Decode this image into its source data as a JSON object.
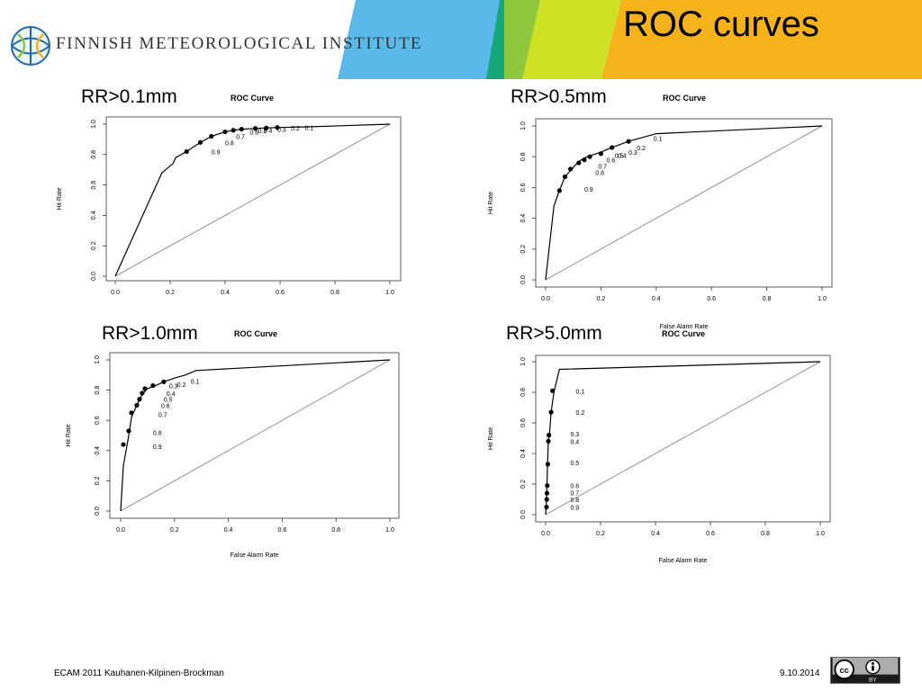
{
  "header": {
    "org_name": "FINNISH METEOROLOGICAL INSTITUTE",
    "title": "ROC curves"
  },
  "colors": {
    "banner_blue": "#5bb9e9",
    "banner_teal": "#17a87a",
    "banner_green": "#8ec73e",
    "banner_lime": "#cfe022",
    "banner_yellow": "#f6b21a",
    "curve": "#000000",
    "diagonal": "#7a7a7a"
  },
  "footer": {
    "left": "ECAM 2011 Kauhanen-Kilpinen-Brockman",
    "date": "9.10.2014",
    "license_badge": "BY"
  },
  "chart_data": [
    {
      "type": "line",
      "panel_label": "RR>0.1mm",
      "title": "ROC Curve",
      "xlabel": "",
      "ylabel": "Hit Rate",
      "xlim": [
        0,
        1
      ],
      "ylim": [
        0,
        1
      ],
      "ticks": [
        "0.0",
        "0.2",
        "0.4",
        "0.6",
        "0.8",
        "1.0"
      ],
      "grid": false,
      "series": [
        {
          "x": [
            0.0,
            0.17,
            0.21,
            0.22,
            0.26,
            0.31,
            0.35,
            0.4,
            0.43,
            0.46,
            0.51,
            0.55,
            0.59,
            0.7,
            1.0
          ],
          "y": [
            0.0,
            0.68,
            0.74,
            0.78,
            0.82,
            0.88,
            0.92,
            0.95,
            0.96,
            0.967,
            0.972,
            0.975,
            0.978,
            0.982,
            1.0
          ]
        }
      ],
      "points": {
        "x": [
          0.26,
          0.31,
          0.35,
          0.4,
          0.43,
          0.46,
          0.51,
          0.55,
          0.59
        ],
        "y": [
          0.82,
          0.88,
          0.92,
          0.95,
          0.96,
          0.967,
          0.972,
          0.975,
          0.978
        ]
      },
      "annotations": [
        {
          "text": "0.9",
          "x": 0.35,
          "y": 0.82
        },
        {
          "text": "0.8",
          "x": 0.4,
          "y": 0.88
        },
        {
          "text": "0.7",
          "x": 0.44,
          "y": 0.92
        },
        {
          "text": "0.6",
          "x": 0.49,
          "y": 0.95
        },
        {
          "text": "0.5",
          "x": 0.52,
          "y": 0.96
        },
        {
          "text": "0.4",
          "x": 0.54,
          "y": 0.963
        },
        {
          "text": "0.3",
          "x": 0.59,
          "y": 0.966
        },
        {
          "text": "0.2",
          "x": 0.64,
          "y": 0.975
        },
        {
          "text": "0.1",
          "x": 0.69,
          "y": 0.978
        }
      ]
    },
    {
      "type": "line",
      "panel_label": "RR>0.5mm",
      "title": "ROC Curve",
      "xlabel": "False Alarm Rate",
      "ylabel": "Hit Rate",
      "xlim": [
        0,
        1
      ],
      "ylim": [
        0,
        1
      ],
      "ticks": [
        "0.0",
        "0.2",
        "0.4",
        "0.6",
        "0.8",
        "1.0"
      ],
      "grid": false,
      "series": [
        {
          "x": [
            0.0,
            0.03,
            0.05,
            0.07,
            0.1,
            0.12,
            0.15,
            0.2,
            0.24,
            0.3,
            0.4,
            1.0
          ],
          "y": [
            0.0,
            0.48,
            0.58,
            0.67,
            0.73,
            0.77,
            0.8,
            0.83,
            0.86,
            0.9,
            0.95,
            1.0
          ]
        }
      ],
      "points": {
        "x": [
          0.05,
          0.07,
          0.09,
          0.12,
          0.14,
          0.16,
          0.2,
          0.24,
          0.3
        ],
        "y": [
          0.58,
          0.67,
          0.72,
          0.76,
          0.78,
          0.8,
          0.82,
          0.86,
          0.9
        ]
      },
      "annotations": [
        {
          "text": "0.9",
          "x": 0.14,
          "y": 0.59
        },
        {
          "text": "0.8",
          "x": 0.18,
          "y": 0.7
        },
        {
          "text": "0.7",
          "x": 0.19,
          "y": 0.74
        },
        {
          "text": "0.6",
          "x": 0.22,
          "y": 0.78
        },
        {
          "text": "0.5",
          "x": 0.25,
          "y": 0.81
        },
        {
          "text": "0.4",
          "x": 0.26,
          "y": 0.81
        },
        {
          "text": "0.3",
          "x": 0.3,
          "y": 0.83
        },
        {
          "text": "0.2",
          "x": 0.33,
          "y": 0.86
        },
        {
          "text": "0.1",
          "x": 0.39,
          "y": 0.92
        }
      ]
    },
    {
      "type": "line",
      "panel_label": "RR>1.0mm",
      "title": "ROC Curve",
      "xlabel": "False Alarm Rate",
      "ylabel": "Hit Rate",
      "xlim": [
        0,
        1
      ],
      "ylim": [
        0,
        1
      ],
      "ticks": [
        "0.0",
        "0.2",
        "0.4",
        "0.6",
        "0.8",
        "1.0"
      ],
      "grid": false,
      "series": [
        {
          "x": [
            0.0,
            0.01,
            0.03,
            0.04,
            0.06,
            0.08,
            0.1,
            0.13,
            0.16,
            0.2,
            0.24,
            0.28,
            1.0
          ],
          "y": [
            0.0,
            0.3,
            0.5,
            0.62,
            0.7,
            0.77,
            0.81,
            0.83,
            0.855,
            0.88,
            0.9,
            0.93,
            1.0
          ]
        }
      ],
      "points": {
        "x": [
          0.01,
          0.03,
          0.04,
          0.06,
          0.07,
          0.08,
          0.09,
          0.12,
          0.16
        ],
        "y": [
          0.44,
          0.53,
          0.65,
          0.7,
          0.74,
          0.78,
          0.81,
          0.83,
          0.855
        ]
      },
      "annotations": [
        {
          "text": "0.9",
          "x": 0.12,
          "y": 0.43
        },
        {
          "text": "0.8",
          "x": 0.12,
          "y": 0.52
        },
        {
          "text": "0.7",
          "x": 0.14,
          "y": 0.64
        },
        {
          "text": "0.6",
          "x": 0.15,
          "y": 0.7
        },
        {
          "text": "0.5",
          "x": 0.16,
          "y": 0.74
        },
        {
          "text": "0.4",
          "x": 0.17,
          "y": 0.78
        },
        {
          "text": "0.3",
          "x": 0.18,
          "y": 0.83
        },
        {
          "text": "0.2",
          "x": 0.21,
          "y": 0.84
        },
        {
          "text": "0.1",
          "x": 0.26,
          "y": 0.86
        }
      ]
    },
    {
      "type": "line",
      "panel_label": "RR>5.0mm",
      "title": "ROC Curve",
      "xlabel": "False Alarm Rate",
      "ylabel": "Hit Rate",
      "xlim": [
        0,
        1
      ],
      "ylim": [
        0,
        1
      ],
      "ticks": [
        "0.0",
        "0.2",
        "0.4",
        "0.6",
        "0.8",
        "1.0"
      ],
      "grid": false,
      "series": [
        {
          "x": [
            0.0,
            0.003,
            0.005,
            0.007,
            0.01,
            0.015,
            0.02,
            0.03,
            0.05,
            1.0
          ],
          "y": [
            0.0,
            0.1,
            0.2,
            0.33,
            0.48,
            0.55,
            0.67,
            0.8,
            0.95,
            1.0
          ]
        }
      ],
      "points": {
        "x": [
          0.003,
          0.004,
          0.005,
          0.006,
          0.008,
          0.01,
          0.012,
          0.02,
          0.025
        ],
        "y": [
          0.05,
          0.1,
          0.14,
          0.19,
          0.33,
          0.48,
          0.52,
          0.67,
          0.81
        ]
      },
      "annotations": [
        {
          "text": "0.9",
          "x": 0.09,
          "y": 0.05
        },
        {
          "text": "0.8",
          "x": 0.09,
          "y": 0.1
        },
        {
          "text": "0.7",
          "x": 0.09,
          "y": 0.145
        },
        {
          "text": "0.6",
          "x": 0.09,
          "y": 0.19
        },
        {
          "text": "0.5",
          "x": 0.09,
          "y": 0.34
        },
        {
          "text": "0.4",
          "x": 0.09,
          "y": 0.48
        },
        {
          "text": "0.3",
          "x": 0.09,
          "y": 0.53
        },
        {
          "text": "0.2",
          "x": 0.11,
          "y": 0.67
        },
        {
          "text": "0.1",
          "x": 0.11,
          "y": 0.81
        }
      ]
    }
  ]
}
